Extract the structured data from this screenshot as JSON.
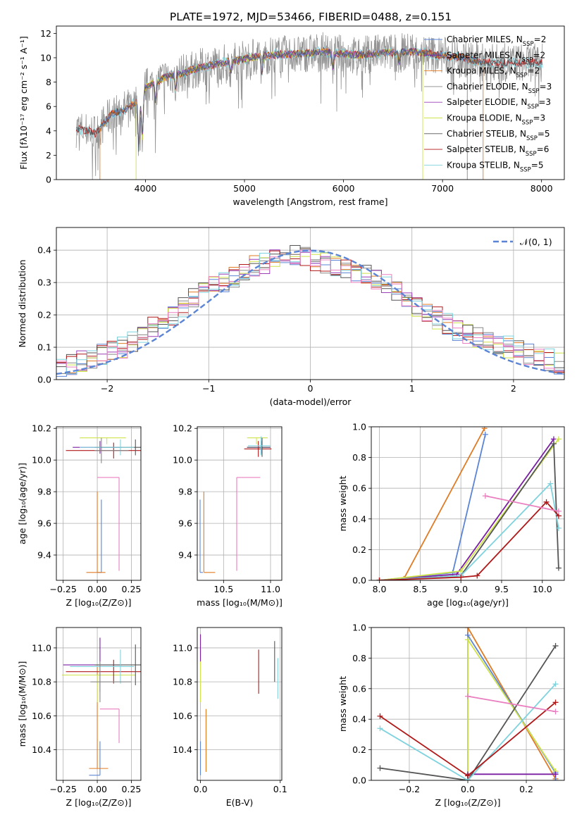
{
  "title": "PLATE=1972, MJD=53466, FIBERID=0488, z=0.151",
  "colors": {
    "Chabrier MILES": "#5b84d4",
    "Salpeter MILES": "#7a1fa2",
    "Kroupa MILES": "#e07b25",
    "Chabrier ELODIE": "#888888",
    "Salpeter ELODIE": "#9b3fb8",
    "Kroupa ELODIE": "#cfe34a",
    "Chabrier STELIB": "#555555",
    "Salpeter STELIB": "#b01919",
    "Kroupa STELIB": "#7fd3de",
    "extra_pink": "#e97fbf",
    "normal_curve": "#5b84d4"
  },
  "chart_data": [
    {
      "id": "spectrum",
      "type": "line",
      "title": "PLATE=1972, MJD=53466, FIBERID=0488, z=0.151",
      "xlabel": "wavelength [Angstrom, rest frame]",
      "ylabel": "Flux [fλ10⁻¹⁷ erg cm⁻² s⁻¹ A⁻¹]",
      "xlim": [
        3100,
        8230
      ],
      "ylim": [
        0,
        12.6
      ],
      "xticks": [
        4000,
        5000,
        6000,
        7000,
        8000
      ],
      "yticks": [
        0,
        2,
        4,
        6,
        8,
        10,
        12
      ],
      "legend_position": "top-right",
      "legend": [
        {
          "label": "Chabrier MILES, N",
          "sub": "SSP",
          "suffix": "=2",
          "color": "#5b84d4"
        },
        {
          "label": "Salpeter MILES, N",
          "sub": "SSP",
          "suffix": "=2",
          "color": "#7a1fa2"
        },
        {
          "label": "Kroupa MILES, N",
          "sub": "SSP",
          "suffix": "=2",
          "color": "#e07b25"
        },
        {
          "label": "Chabrier ELODIE, N",
          "sub": "SSP",
          "suffix": "=3",
          "color": "#888888"
        },
        {
          "label": "Salpeter ELODIE, N",
          "sub": "SSP",
          "suffix": "=3",
          "color": "#9b3fb8"
        },
        {
          "label": "Kroupa ELODIE, N",
          "sub": "SSP",
          "suffix": "=3",
          "color": "#cfe34a"
        },
        {
          "label": "Chabrier STELIB, N",
          "sub": "SSP",
          "suffix": "=5",
          "color": "#555555"
        },
        {
          "label": "Salpeter STELIB, N",
          "sub": "SSP",
          "suffix": "=6",
          "color": "#b01919"
        },
        {
          "label": "Kroupa STELIB, N",
          "sub": "SSP",
          "suffix": "=5",
          "color": "#7fd3de"
        }
      ],
      "continuum": {
        "x": [
          3300,
          3500,
          3650,
          3800,
          3900,
          4000,
          4200,
          4400,
          4600,
          4800,
          5000,
          5200,
          5500,
          5800,
          6100,
          6400,
          6700,
          7000,
          7200,
          7400
        ],
        "y": [
          4.2,
          3.8,
          5.3,
          5.8,
          6.3,
          7.6,
          8.4,
          8.8,
          9.3,
          9.6,
          9.9,
          10.2,
          10.3,
          10.5,
          10.2,
          10.4,
          10.5,
          10.2,
          10.0,
          9.6
        ]
      },
      "range_by_series": {
        "miles": [
          3540,
          7410
        ],
        "elodie": [
          3900,
          6800
        ],
        "stelib": [
          3300,
          8010
        ],
        "data": [
          3300,
          8010
        ]
      },
      "absorption_features": [
        {
          "x": 3933,
          "depth": 4.2
        },
        {
          "x": 3968,
          "depth": 3.8
        },
        {
          "x": 4102,
          "depth": 1.5
        },
        {
          "x": 4304,
          "depth": 1.2
        },
        {
          "x": 4861,
          "depth": 1.0
        },
        {
          "x": 5175,
          "depth": 1.4
        },
        {
          "x": 5893,
          "depth": 1.2
        },
        {
          "x": 6563,
          "depth": 0.8
        }
      ]
    },
    {
      "id": "residual_hist",
      "type": "line",
      "xlabel": "(data-model)/error",
      "ylabel": "Normed distribution",
      "xlim": [
        -2.5,
        2.5
      ],
      "ylim": [
        0,
        0.47
      ],
      "xticks": [
        -2,
        -1,
        0,
        1,
        2
      ],
      "yticks": [
        0.0,
        0.1,
        0.2,
        0.3,
        0.4
      ],
      "legend_position": "top-right",
      "legend": [
        {
          "label": "𝒩(0, 1)",
          "color": "#5b84d4",
          "dashed": true
        }
      ],
      "bin_width": 0.1,
      "bins_start": -2.5,
      "series_envelope": [
        0.04,
        0.05,
        0.06,
        0.07,
        0.08,
        0.09,
        0.1,
        0.12,
        0.14,
        0.16,
        0.18,
        0.2,
        0.22,
        0.25,
        0.27,
        0.29,
        0.3,
        0.32,
        0.34,
        0.35,
        0.36,
        0.37,
        0.38,
        0.38,
        0.38,
        0.37,
        0.36,
        0.35,
        0.34,
        0.33,
        0.32,
        0.31,
        0.29,
        0.27,
        0.25,
        0.23,
        0.21,
        0.19,
        0.17,
        0.15,
        0.14,
        0.13,
        0.12,
        0.11,
        0.1,
        0.09,
        0.08,
        0.07,
        0.06,
        0.05
      ]
    },
    {
      "id": "age_vs_Z",
      "type": "scatter",
      "xlabel": "Z [log₁₀(Z/Z⊙)]",
      "ylabel": "age  [log₁₀(age/yr)]",
      "xlim": [
        -0.3,
        0.32
      ],
      "ylim": [
        9.24,
        10.21
      ],
      "xticks": [
        -0.25,
        0.0,
        0.25
      ],
      "xticklabels": [
        "−0.25",
        "0.00",
        "0.25"
      ],
      "yticks": [
        9.4,
        9.6,
        9.8,
        10.0,
        10.2
      ],
      "points": [
        {
          "color": "#5b84d4",
          "x": 0.03,
          "y": 9.29,
          "xerr": [
            0.03,
            0.0
          ],
          "yerr": [
            0.0,
            0.46
          ]
        },
        {
          "color": "#e07b25",
          "x": 0.0,
          "y": 9.29,
          "xerr": [
            0.08,
            0.06
          ],
          "yerr": [
            0.0,
            0.51
          ]
        },
        {
          "color": "#e97fbf",
          "x": 0.16,
          "y": 9.89,
          "xerr": [
            0.16,
            0.0
          ],
          "yerr": [
            0.59,
            0.0
          ]
        },
        {
          "color": "#cfe34a",
          "x": 0.07,
          "y": 10.14,
          "xerr": [
            0.2,
            0.14
          ],
          "yerr": [
            0.04,
            0.0
          ]
        },
        {
          "color": "#b01919",
          "x": 0.12,
          "y": 10.06,
          "xerr": [
            0.35,
            0.2
          ],
          "yerr": [
            0.05,
            0.05
          ]
        },
        {
          "color": "#7a1fa2",
          "x": 0.02,
          "y": 10.08,
          "xerr": [
            0.2,
            0.16
          ],
          "yerr": [
            0.04,
            0.04
          ]
        },
        {
          "color": "#555555",
          "x": 0.28,
          "y": 10.08,
          "xerr": [
            0.3,
            0.05
          ],
          "yerr": [
            0.05,
            0.05
          ]
        },
        {
          "color": "#7fd3de",
          "x": 0.17,
          "y": 10.08,
          "xerr": [
            0.3,
            0.1
          ],
          "yerr": [
            0.05,
            0.05
          ]
        },
        {
          "color": "#888888",
          "x": 0.03,
          "y": 10.06,
          "xerr": [
            0.05,
            0.2
          ],
          "yerr": [
            0.08,
            0.08
          ]
        }
      ]
    },
    {
      "id": "age_vs_mass",
      "type": "scatter",
      "xlabel": "mass [log₁₀(M/M⊙)]",
      "xlim": [
        10.22,
        11.12
      ],
      "ylim": [
        9.24,
        10.21
      ],
      "xticks": [
        10.5,
        11.0
      ],
      "yticks": [
        9.4,
        9.6,
        9.8,
        10.0,
        10.2
      ],
      "points": [
        {
          "color": "#5b84d4",
          "x": 10.25,
          "y": 9.29,
          "xerr": [
            0.0,
            0.03
          ],
          "yerr": [
            0.0,
            0.46
          ]
        },
        {
          "color": "#e07b25",
          "x": 10.29,
          "y": 9.29,
          "xerr": [
            0.0,
            0.12
          ],
          "yerr": [
            0.0,
            0.51
          ]
        },
        {
          "color": "#e97fbf",
          "x": 10.64,
          "y": 9.89,
          "xerr": [
            0.0,
            0.25
          ],
          "yerr": [
            0.59,
            0.0
          ]
        },
        {
          "color": "#cfe34a",
          "x": 10.85,
          "y": 10.14,
          "xerr": [
            0.1,
            0.12
          ],
          "yerr": [
            0.04,
            0.0
          ]
        },
        {
          "color": "#b01919",
          "x": 10.87,
          "y": 10.07,
          "xerr": [
            0.15,
            0.14
          ],
          "yerr": [
            0.05,
            0.05
          ]
        },
        {
          "color": "#7a1fa2",
          "x": 10.9,
          "y": 10.08,
          "xerr": [
            0.15,
            0.1
          ],
          "yerr": [
            0.04,
            0.04
          ]
        },
        {
          "color": "#555555",
          "x": 10.91,
          "y": 10.08,
          "xerr": [
            0.16,
            0.08
          ],
          "yerr": [
            0.06,
            0.06
          ]
        },
        {
          "color": "#7fd3de",
          "x": 10.9,
          "y": 10.09,
          "xerr": [
            0.14,
            0.1
          ],
          "yerr": [
            0.06,
            0.06
          ]
        }
      ]
    },
    {
      "id": "weight_vs_age",
      "type": "line",
      "xlabel": "age  [log₁₀(age/yr)]",
      "ylabel": "mass weight",
      "xlim": [
        7.9,
        10.27
      ],
      "ylim": [
        0,
        1
      ],
      "xticks": [
        8.0,
        8.5,
        9.0,
        9.5,
        10.0
      ],
      "yticks": [
        0.0,
        0.2,
        0.4,
        0.6,
        0.8,
        1.0
      ],
      "series": [
        {
          "color": "#e07b25",
          "x": [
            8.0,
            8.3,
            9.29
          ],
          "y": [
            0.0,
            0.01,
            0.99
          ]
        },
        {
          "color": "#5b84d4",
          "x": [
            8.0,
            8.9,
            9.3
          ],
          "y": [
            0.0,
            0.05,
            0.95
          ]
        },
        {
          "color": "#7a1fa2",
          "x": [
            8.0,
            8.95,
            10.14
          ],
          "y": [
            0.0,
            0.04,
            0.92
          ]
        },
        {
          "color": "#cfe34a",
          "x": [
            8.0,
            9.0,
            10.2
          ],
          "y": [
            0.0,
            0.06,
            0.92
          ]
        },
        {
          "color": "#555555",
          "x": [
            8.0,
            9.0,
            10.14,
            10.2
          ],
          "y": [
            0.0,
            0.03,
            0.89,
            0.08
          ]
        },
        {
          "color": "#7fd3de",
          "x": [
            8.0,
            9.0,
            10.1,
            10.2
          ],
          "y": [
            0.0,
            0.03,
            0.63,
            0.34
          ]
        },
        {
          "color": "#b01919",
          "x": [
            8.0,
            9.0,
            9.2,
            10.05,
            10.2
          ],
          "y": [
            0.0,
            0.02,
            0.03,
            0.51,
            0.42
          ]
        },
        {
          "color": "#e97fbf",
          "x": [
            9.3,
            10.2
          ],
          "y": [
            0.55,
            0.45
          ]
        }
      ]
    },
    {
      "id": "mass_vs_Z",
      "type": "scatter",
      "xlabel": "Z [log₁₀(Z/Z⊙)]",
      "ylabel": "mass [log₁₀(M/M⊙)]",
      "xlim": [
        -0.3,
        0.32
      ],
      "ylim": [
        10.22,
        11.12
      ],
      "xticks": [
        -0.25,
        0.0,
        0.25
      ],
      "xticklabels": [
        "−0.25",
        "0.00",
        "0.25"
      ],
      "yticks": [
        10.4,
        10.6,
        10.8,
        11.0
      ],
      "points": [
        {
          "color": "#5b84d4",
          "x": 0.02,
          "y": 10.25,
          "xerr": [
            0.08,
            0.0
          ],
          "yerr": [
            0.0,
            0.2
          ]
        },
        {
          "color": "#e07b25",
          "x": 0.0,
          "y": 10.29,
          "xerr": [
            0.06,
            0.08
          ],
          "yerr": [
            0.0,
            0.6
          ]
        },
        {
          "color": "#e97fbf",
          "x": 0.16,
          "y": 10.64,
          "xerr": [
            0.14,
            0.0
          ],
          "yerr": [
            0.2,
            0.0
          ]
        },
        {
          "color": "#cfe34a",
          "x": 0.0,
          "y": 10.84,
          "xerr": [
            0.26,
            0.28
          ],
          "yerr": [
            0.16,
            0.0
          ]
        },
        {
          "color": "#b01919",
          "x": 0.12,
          "y": 10.86,
          "xerr": [
            0.35,
            0.2
          ],
          "yerr": [
            0.07,
            0.07
          ]
        },
        {
          "color": "#7a1fa2",
          "x": 0.02,
          "y": 10.9,
          "xerr": [
            0.27,
            0.16
          ],
          "yerr": [
            0.16,
            0.16
          ]
        },
        {
          "color": "#555555",
          "x": 0.28,
          "y": 10.9,
          "xerr": [
            0.3,
            0.05
          ],
          "yerr": [
            0.12,
            0.12
          ]
        },
        {
          "color": "#7fd3de",
          "x": 0.17,
          "y": 10.89,
          "xerr": [
            0.37,
            0.1
          ],
          "yerr": [
            0.1,
            0.1
          ]
        },
        {
          "color": "#888888",
          "x": 0.02,
          "y": 10.8,
          "xerr": [
            0.07,
            0.23
          ],
          "yerr": [
            0.12,
            0.12
          ]
        }
      ]
    },
    {
      "id": "mass_vs_ebv",
      "type": "scatter",
      "xlabel": "E(B-V)",
      "xlim": [
        -0.004,
        0.102
      ],
      "ylim": [
        10.22,
        11.12
      ],
      "xticks": [
        0.0,
        0.1
      ],
      "xticklabels": [
        "0.0",
        "0.1"
      ],
      "yticks": [
        10.4,
        10.6,
        10.8,
        11.0
      ],
      "points": [
        {
          "color": "#5b84d4",
          "x": 0.0,
          "y": 10.25,
          "yerr": [
            0.0,
            0.2
          ]
        },
        {
          "color": "#e07b25",
          "x": 0.007,
          "y": 10.27,
          "yerr": [
            0.0,
            0.37
          ]
        },
        {
          "color": "#e97fbf",
          "x": 0.0,
          "y": 10.6,
          "yerr": [
            0.0,
            0.0
          ]
        },
        {
          "color": "#cfe34a",
          "x": 0.0,
          "y": 10.68,
          "yerr": [
            0.0,
            0.32
          ]
        },
        {
          "color": "#7a1fa2",
          "x": 0.0,
          "y": 11.0,
          "yerr": [
            0.08,
            0.08
          ]
        },
        {
          "color": "#b01919",
          "x": 0.073,
          "y": 10.85,
          "yerr": [
            0.12,
            0.14
          ]
        },
        {
          "color": "#555555",
          "x": 0.093,
          "y": 10.92,
          "yerr": [
            0.12,
            0.12
          ]
        },
        {
          "color": "#7fd3de",
          "x": 0.097,
          "y": 10.82,
          "yerr": [
            0.12,
            0.12
          ]
        }
      ]
    },
    {
      "id": "weight_vs_Z",
      "type": "line",
      "xlabel": "Z [log₁₀(Z/Z⊙)]",
      "ylabel": "mass weight",
      "xlim": [
        -0.33,
        0.33
      ],
      "ylim": [
        0,
        1
      ],
      "xticks": [
        -0.2,
        0.0,
        0.2
      ],
      "xticklabels": [
        "−0.2",
        "0.0",
        "0.2"
      ],
      "yticks": [
        0.0,
        0.2,
        0.4,
        0.6,
        0.8,
        1.0
      ],
      "series": [
        {
          "color": "#e07b25",
          "x": [
            0.0,
            0.0,
            0.3
          ],
          "y": [
            0.0,
            1.0,
            0.01
          ]
        },
        {
          "color": "#5b84d4",
          "x": [
            0.0,
            0.0,
            0.3,
            0.3
          ],
          "y": [
            0.0,
            0.95,
            0.05,
            0.0
          ]
        },
        {
          "color": "#cfe34a",
          "x": [
            0.0,
            0.0,
            0.3
          ],
          "y": [
            0.0,
            0.92,
            0.06
          ]
        },
        {
          "color": "#7a1fa2",
          "x": [
            0.0,
            0.0,
            0.3
          ],
          "y": [
            0.0,
            0.04,
            0.04
          ]
        },
        {
          "color": "#555555",
          "x": [
            -0.3,
            0.0,
            0.3
          ],
          "y": [
            0.08,
            0.0,
            0.88
          ]
        },
        {
          "color": "#7fd3de",
          "x": [
            -0.3,
            0.0,
            0.3
          ],
          "y": [
            0.34,
            0.0,
            0.63
          ]
        },
        {
          "color": "#b01919",
          "x": [
            -0.3,
            0.0,
            0.3
          ],
          "y": [
            0.42,
            0.03,
            0.51
          ]
        },
        {
          "color": "#e97fbf",
          "x": [
            0.0,
            0.3
          ],
          "y": [
            0.55,
            0.45
          ]
        }
      ]
    }
  ]
}
